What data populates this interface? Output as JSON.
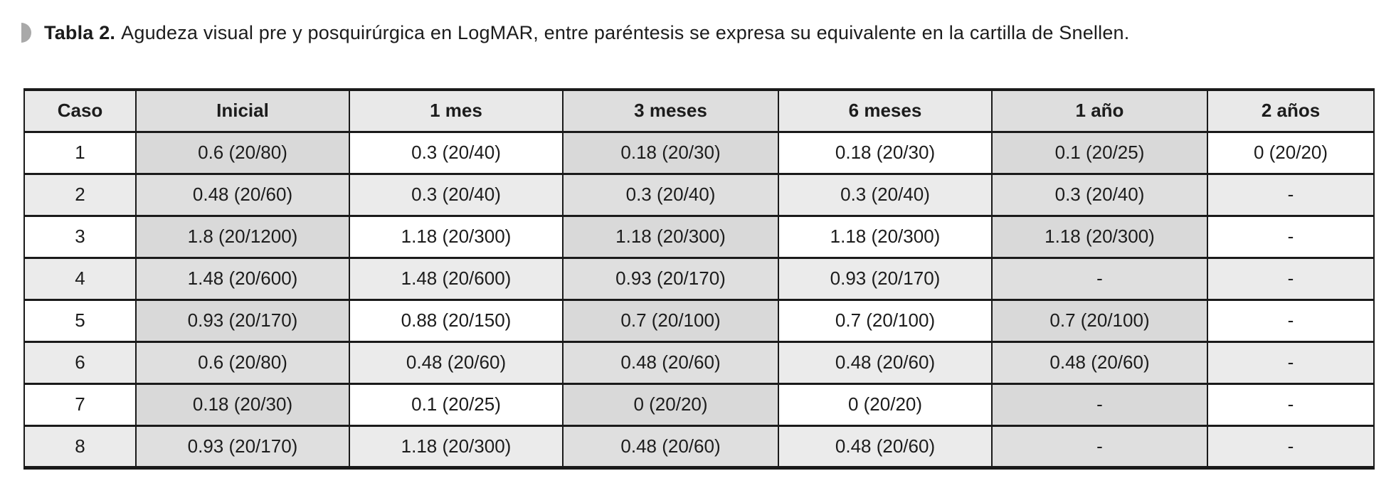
{
  "caption": {
    "label": "Tabla 2.",
    "text": "Agudeza visual pre y posquirúrgica en LogMAR, entre paréntesis se expresa su equivalente en la cartilla de Snellen."
  },
  "table": {
    "columns": [
      "Caso",
      "Inicial",
      "1 mes",
      "3 meses",
      "6 meses",
      "1 año",
      "2 años"
    ],
    "rows": [
      [
        "1",
        "0.6 (20/80)",
        "0.3 (20/40)",
        "0.18 (20/30)",
        "0.18 (20/30)",
        "0.1 (20/25)",
        "0 (20/20)"
      ],
      [
        "2",
        "0.48 (20/60)",
        "0.3 (20/40)",
        "0.3 (20/40)",
        "0.3 (20/40)",
        "0.3 (20/40)",
        "-"
      ],
      [
        "3",
        "1.8 (20/1200)",
        "1.18 (20/300)",
        "1.18 (20/300)",
        "1.18 (20/300)",
        "1.18 (20/300)",
        "-"
      ],
      [
        "4",
        "1.48 (20/600)",
        "1.48 (20/600)",
        "0.93 (20/170)",
        "0.93 (20/170)",
        "-",
        "-"
      ],
      [
        "5",
        "0.93 (20/170)",
        "0.88 (20/150)",
        "0.7 (20/100)",
        "0.7 (20/100)",
        "0.7 (20/100)",
        "-"
      ],
      [
        "6",
        "0.6 (20/80)",
        "0.48 (20/60)",
        "0.48 (20/60)",
        "0.48 (20/60)",
        "0.48 (20/60)",
        "-"
      ],
      [
        "7",
        "0.18 (20/30)",
        "0.1 (20/25)",
        "0 (20/20)",
        "0 (20/20)",
        "-",
        "-"
      ],
      [
        "8",
        "0.93 (20/170)",
        "1.18 (20/300)",
        "0.48 (20/60)",
        "0.48 (20/60)",
        "-",
        "-"
      ]
    ],
    "shaded_column_indexes": [
      1,
      3,
      5
    ]
  },
  "colors": {
    "border": "#1a1a1a",
    "text": "#1c1c1c",
    "shaded_column": "#d9d9d9",
    "even_row": "#ebebeb",
    "even_row_shaded": "#dfdfdf",
    "header_bg": "#e9e9e9",
    "header_bg_shaded": "#dedede",
    "marker": "#a9a9a9"
  }
}
